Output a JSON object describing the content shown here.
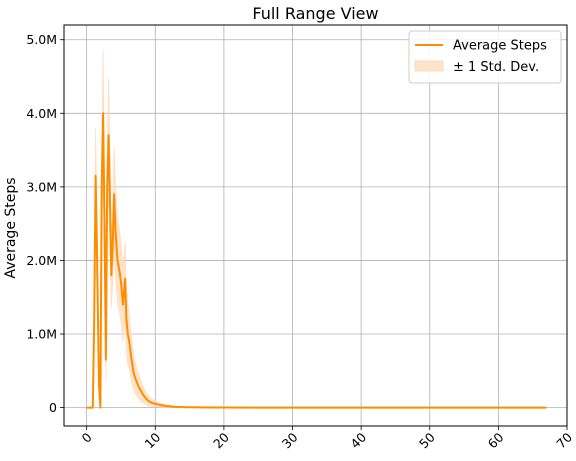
{
  "chart_data": {
    "type": "line",
    "title": "Full Range View",
    "xlabel": "",
    "ylabel": "Average Steps",
    "xlim": [
      -3.3,
      70
    ],
    "ylim": [
      -250000,
      5200000
    ],
    "xticks": [
      0,
      10,
      20,
      30,
      40,
      50,
      60,
      70
    ],
    "xtick_labels": [
      "0",
      "10",
      "20",
      "30",
      "40",
      "50",
      "60",
      "70"
    ],
    "yticks": [
      0,
      1000000,
      2000000,
      3000000,
      4000000,
      5000000
    ],
    "ytick_labels": [
      "0",
      "1.0M",
      "2.0M",
      "3.0M",
      "4.0M",
      "5.0M"
    ],
    "grid": true,
    "legend_position": "top-right",
    "legend": [
      "Average Steps",
      "± 1 Std. Dev."
    ],
    "colors": {
      "line": "#ff8c00",
      "band": "#ffdab9"
    },
    "series": [
      {
        "name": "Average Steps",
        "x": [
          0,
          0.5,
          0.9,
          1.1,
          1.3,
          1.5,
          1.8,
          2.0,
          2.2,
          2.4,
          2.6,
          2.8,
          3.0,
          3.2,
          3.4,
          3.6,
          3.8,
          4.0,
          4.2,
          4.5,
          4.8,
          5.0,
          5.3,
          5.6,
          5.8,
          6.0,
          6.2,
          6.4,
          6.6,
          6.8,
          7.0,
          7.3,
          7.6,
          7.9,
          8.2,
          8.5,
          8.8,
          9.1,
          9.5,
          10.0,
          10.5,
          11.0,
          11.5,
          12.0,
          12.5,
          13.0,
          14.0,
          15.0,
          16.5,
          18.0,
          20.0,
          25.0,
          30.0,
          40.0,
          50.0,
          60.0,
          67.0
        ],
        "y": [
          0,
          0,
          0,
          1200000,
          3150000,
          2200000,
          300000,
          0,
          3000000,
          4000000,
          2500000,
          650000,
          3000000,
          3700000,
          2800000,
          1800000,
          2200000,
          2900000,
          2400000,
          2000000,
          1850000,
          1700000,
          1400000,
          1750000,
          1200000,
          1000000,
          900000,
          750000,
          620000,
          500000,
          420000,
          350000,
          280000,
          230000,
          180000,
          140000,
          110000,
          85000,
          65000,
          50000,
          40000,
          30000,
          22000,
          18000,
          14000,
          10000,
          7000,
          5000,
          3000,
          2000,
          1000,
          500,
          0,
          0,
          0,
          0,
          0
        ],
        "std": [
          0,
          0,
          0,
          400000,
          650000,
          500000,
          200000,
          0,
          600000,
          880000,
          500000,
          300000,
          550000,
          780000,
          650000,
          450000,
          500000,
          650000,
          620000,
          580000,
          560000,
          540000,
          500000,
          520000,
          450000,
          420000,
          380000,
          330000,
          290000,
          250000,
          220000,
          190000,
          160000,
          140000,
          115000,
          95000,
          80000,
          65000,
          52000,
          42000,
          34000,
          26000,
          20000,
          16000,
          12000,
          9000,
          6000,
          4500,
          3000,
          2000,
          1000,
          500,
          0,
          0,
          0,
          0,
          0
        ]
      }
    ]
  }
}
